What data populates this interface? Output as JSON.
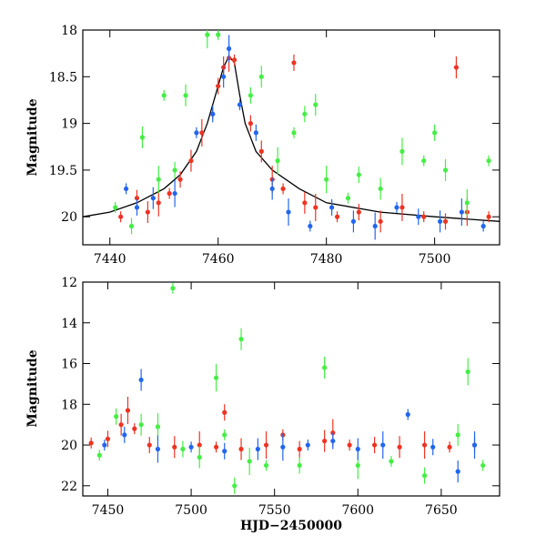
{
  "colors": {
    "red": "#ee3322",
    "green": "#44ee44",
    "blue": "#2266ee",
    "black": "#000000"
  },
  "chart_data": [
    {
      "type": "scatter",
      "title": "",
      "xlabel": "",
      "ylabel": "Magnitude",
      "xlim": [
        7435,
        7512
      ],
      "ylim": [
        20.3,
        18.0
      ],
      "inverted_y": true,
      "x_ticks": [
        "7440",
        "7460",
        "7480",
        "7500"
      ],
      "y_ticks": [
        "18",
        "18.5",
        "19",
        "19.5",
        "20"
      ],
      "grid": false,
      "legend": "none",
      "model_curve": {
        "x": [
          7435,
          7440,
          7445,
          7450,
          7453,
          7456,
          7458,
          7460,
          7461,
          7462,
          7463,
          7464,
          7465,
          7467,
          7470,
          7475,
          7480,
          7490,
          7500,
          7512
        ],
        "y": [
          20.0,
          19.95,
          19.85,
          19.7,
          19.55,
          19.3,
          19.0,
          18.6,
          18.4,
          18.28,
          18.35,
          18.7,
          19.0,
          19.3,
          19.5,
          19.7,
          19.85,
          19.95,
          20.0,
          20.05
        ]
      },
      "series": [
        {
          "color": "red",
          "points": [
            [
              7442,
              20.0
            ],
            [
              7445,
              19.8
            ],
            [
              7447,
              19.95
            ],
            [
              7449,
              19.85
            ],
            [
              7451,
              19.75
            ],
            [
              7453,
              19.6
            ],
            [
              7455,
              19.4
            ],
            [
              7457,
              19.1
            ],
            [
              7459,
              18.9
            ],
            [
              7460,
              18.6
            ],
            [
              7461,
              18.4
            ],
            [
              7462,
              18.3
            ],
            [
              7463,
              18.32
            ],
            [
              7466,
              19.0
            ],
            [
              7468,
              19.3
            ],
            [
              7470,
              19.6
            ],
            [
              7472,
              19.7
            ],
            [
              7474,
              18.35
            ],
            [
              7476,
              19.85
            ],
            [
              7478,
              19.9
            ],
            [
              7482,
              20.0
            ],
            [
              7486,
              19.95
            ],
            [
              7490,
              20.05
            ],
            [
              7494,
              19.9
            ],
            [
              7498,
              20.0
            ],
            [
              7502,
              20.05
            ],
            [
              7504,
              18.4
            ],
            [
              7506,
              19.95
            ],
            [
              7510,
              20.0
            ]
          ]
        },
        {
          "color": "green",
          "points": [
            [
              7441,
              19.9
            ],
            [
              7444,
              20.1
            ],
            [
              7446,
              19.15
            ],
            [
              7449,
              19.6
            ],
            [
              7450,
              18.7
            ],
            [
              7452,
              19.5
            ],
            [
              7454,
              18.7
            ],
            [
              7458,
              18.05
            ],
            [
              7460,
              18.05
            ],
            [
              7466,
              18.7
            ],
            [
              7468,
              18.5
            ],
            [
              7471,
              19.4
            ],
            [
              7474,
              19.1
            ],
            [
              7476,
              18.9
            ],
            [
              7478,
              18.8
            ],
            [
              7480,
              19.6
            ],
            [
              7484,
              19.8
            ],
            [
              7486,
              19.55
            ],
            [
              7490,
              19.7
            ],
            [
              7494,
              19.3
            ],
            [
              7498,
              19.4
            ],
            [
              7500,
              19.1
            ],
            [
              7502,
              19.5
            ],
            [
              7506,
              19.85
            ],
            [
              7510,
              19.4
            ]
          ]
        },
        {
          "color": "blue",
          "points": [
            [
              7443,
              19.7
            ],
            [
              7445,
              19.9
            ],
            [
              7448,
              19.8
            ],
            [
              7452,
              19.75
            ],
            [
              7456,
              19.1
            ],
            [
              7459,
              18.9
            ],
            [
              7461,
              18.5
            ],
            [
              7462,
              18.2
            ],
            [
              7464,
              18.8
            ],
            [
              7467,
              19.1
            ],
            [
              7470,
              19.7
            ],
            [
              7473,
              19.95
            ],
            [
              7477,
              20.1
            ],
            [
              7481,
              19.9
            ],
            [
              7485,
              20.05
            ],
            [
              7489,
              20.1
            ],
            [
              7493,
              19.9
            ],
            [
              7497,
              20.0
            ],
            [
              7501,
              20.05
            ],
            [
              7505,
              19.95
            ],
            [
              7509,
              20.1
            ]
          ]
        }
      ]
    },
    {
      "type": "scatter",
      "title": "",
      "xlabel": "HJD−2450000",
      "ylabel": "Magnitude",
      "xlim": [
        7435,
        7685
      ],
      "ylim": [
        22.5,
        12.0
      ],
      "inverted_y": true,
      "x_ticks": [
        "7450",
        "7500",
        "7550",
        "7600",
        "7650"
      ],
      "y_ticks": [
        "12",
        "14",
        "16",
        "18",
        "20",
        "22"
      ],
      "grid": false,
      "legend": "none",
      "series": [
        {
          "color": "red",
          "points": [
            [
              7440,
              19.9
            ],
            [
              7450,
              19.7
            ],
            [
              7458,
              19.0
            ],
            [
              7462,
              18.3
            ],
            [
              7466,
              19.2
            ],
            [
              7475,
              20.0
            ],
            [
              7490,
              20.1
            ],
            [
              7505,
              20.0
            ],
            [
              7515,
              20.1
            ],
            [
              7520,
              18.4
            ],
            [
              7530,
              20.2
            ],
            [
              7545,
              20.0
            ],
            [
              7555,
              19.5
            ],
            [
              7565,
              20.2
            ],
            [
              7580,
              19.8
            ],
            [
              7585,
              19.4
            ],
            [
              7595,
              20.0
            ],
            [
              7610,
              20.0
            ],
            [
              7625,
              20.1
            ],
            [
              7640,
              20.0
            ],
            [
              7655,
              20.1
            ],
            [
              7670,
              20.0
            ]
          ]
        },
        {
          "color": "green",
          "points": [
            [
              7445,
              20.5
            ],
            [
              7455,
              18.6
            ],
            [
              7470,
              19.0
            ],
            [
              7480,
              19.1
            ],
            [
              7489,
              12.3
            ],
            [
              7495,
              20.2
            ],
            [
              7505,
              20.6
            ],
            [
              7515,
              16.7
            ],
            [
              7520,
              19.5
            ],
            [
              7526,
              22.0
            ],
            [
              7530,
              14.8
            ],
            [
              7535,
              20.8
            ],
            [
              7545,
              21.0
            ],
            [
              7565,
              21.0
            ],
            [
              7580,
              16.2
            ],
            [
              7600,
              21.0
            ],
            [
              7620,
              20.8
            ],
            [
              7640,
              21.5
            ],
            [
              7660,
              19.5
            ],
            [
              7666,
              16.4
            ],
            [
              7675,
              21.0
            ]
          ]
        },
        {
          "color": "blue",
          "points": [
            [
              7448,
              20.0
            ],
            [
              7460,
              19.5
            ],
            [
              7470,
              16.8
            ],
            [
              7480,
              20.2
            ],
            [
              7500,
              20.1
            ],
            [
              7520,
              20.3
            ],
            [
              7540,
              20.2
            ],
            [
              7555,
              20.1
            ],
            [
              7570,
              20.0
            ],
            [
              7585,
              19.8
            ],
            [
              7600,
              20.2
            ],
            [
              7615,
              20.0
            ],
            [
              7630,
              18.5
            ],
            [
              7645,
              20.1
            ],
            [
              7660,
              21.3
            ],
            [
              7670,
              20.0
            ]
          ]
        }
      ]
    }
  ]
}
